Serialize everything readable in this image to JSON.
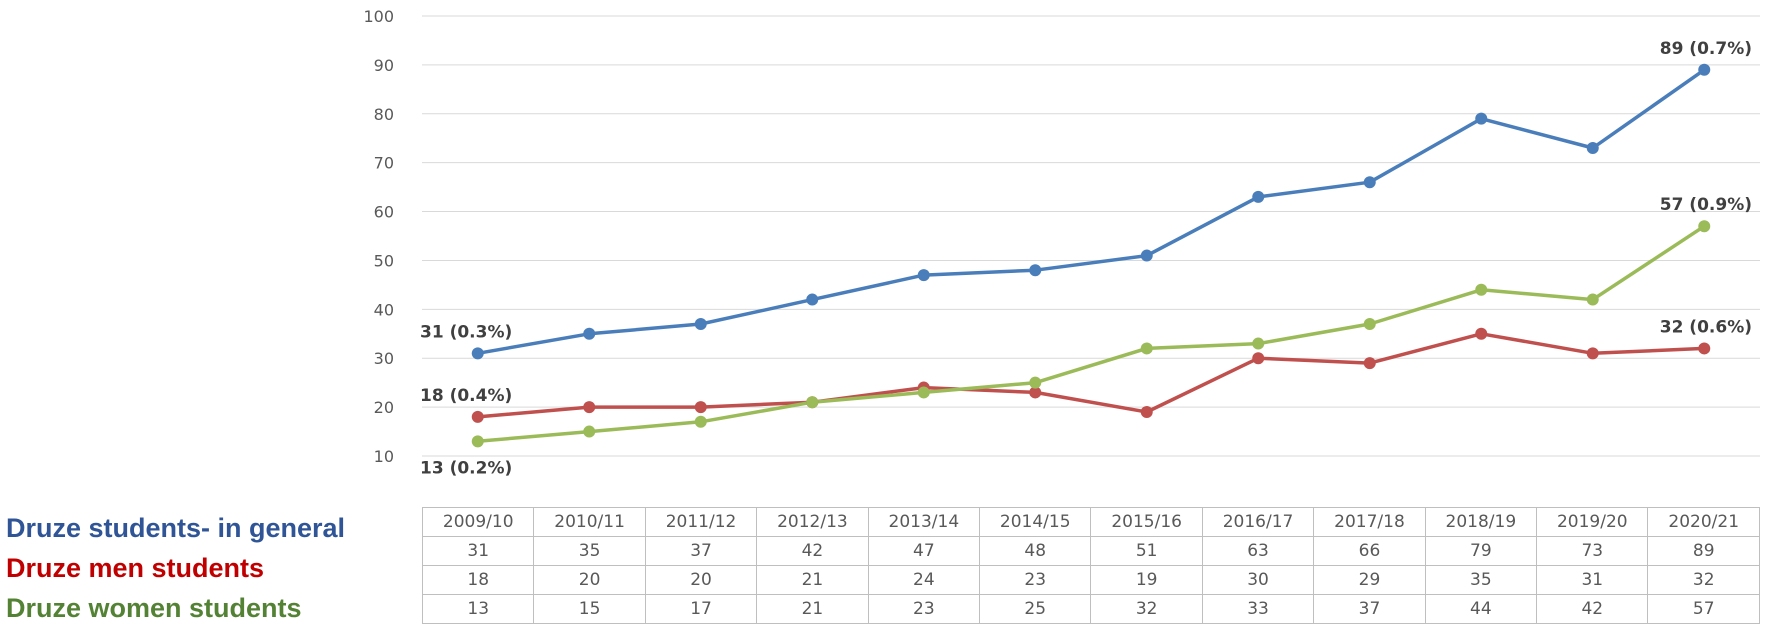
{
  "chart_data": {
    "type": "line",
    "categories": [
      "2009/10",
      "2010/11",
      "2011/12",
      "2012/13",
      "2013/14",
      "2014/15",
      "2015/16",
      "2016/17",
      "2017/18",
      "2018/19",
      "2019/20",
      "2020/21"
    ],
    "series": [
      {
        "name": "Druze students- in  general",
        "color": "#4a7ebb",
        "values": [
          31,
          35,
          37,
          42,
          47,
          48,
          51,
          63,
          66,
          79,
          73,
          89
        ]
      },
      {
        "name": "Druze men students",
        "color": "#c0504d",
        "values": [
          18,
          20,
          20,
          21,
          24,
          23,
          19,
          30,
          29,
          35,
          31,
          32
        ]
      },
      {
        "name": "Druze women students",
        "color": "#9bbb59",
        "values": [
          13,
          15,
          17,
          21,
          23,
          25,
          32,
          33,
          37,
          44,
          42,
          57
        ]
      }
    ],
    "ylim": [
      10,
      100
    ],
    "yticks": [
      10,
      20,
      30,
      40,
      50,
      60,
      70,
      80,
      90,
      100
    ],
    "grid": true,
    "annotations": [
      {
        "series": 0,
        "point": 0,
        "text": "31  (0.3%)"
      },
      {
        "series": 0,
        "point": 11,
        "text": "89  (0.7%)"
      },
      {
        "series": 1,
        "point": 0,
        "text": "18  (0.4%)"
      },
      {
        "series": 1,
        "point": 11,
        "text": "32  (0.6%)"
      },
      {
        "series": 2,
        "point": 0,
        "text": "13  (0.2%)"
      },
      {
        "series": 2,
        "point": 11,
        "text": "57  (0.9%)"
      }
    ],
    "legend_legend_colors": {
      "general": "#2f5597",
      "men": "#c00000",
      "women": "#548235"
    }
  },
  "legend": {
    "general": "Druze students- in  general",
    "men": "Druze men students",
    "women": "Druze women students"
  }
}
